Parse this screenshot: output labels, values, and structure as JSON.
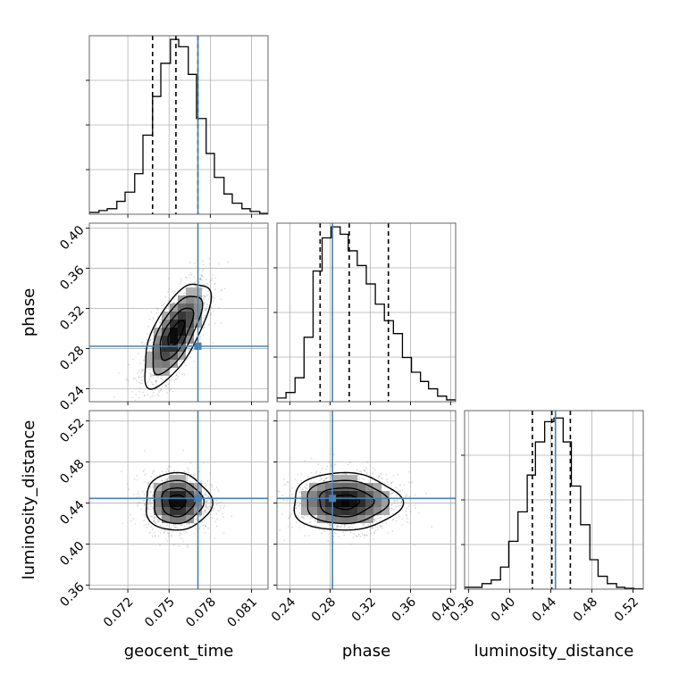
{
  "chart_data": {
    "type": "corner",
    "parameters": [
      "geocent_time",
      "phase",
      "luminosity_distance"
    ],
    "axis_labels": {
      "geocent_time": "geocent_time",
      "phase": "phase",
      "luminosity_distance": "luminosity_distance"
    },
    "ranges": {
      "geocent_time": [
        0.0692,
        0.0822
      ],
      "phase": [
        0.227,
        0.405
      ],
      "luminosity_distance": [
        0.356,
        0.53
      ]
    },
    "ticks": {
      "geocent_time": [
        "0.072",
        "0.075",
        "0.078",
        "0.081"
      ],
      "phase": [
        "0.24",
        "0.28",
        "0.32",
        "0.36",
        "0.40"
      ],
      "luminosity_distance": [
        "0.36",
        "0.40",
        "0.44",
        "0.48",
        "0.52"
      ]
    },
    "truths": {
      "geocent_time": 0.0771,
      "phase": 0.2823,
      "luminosity_distance": 0.4445
    },
    "quantiles": {
      "geocent_time": [
        0.0738,
        0.0755,
        0.0771
      ],
      "phase": [
        0.27,
        0.299,
        0.338
      ],
      "luminosity_distance": [
        0.422,
        0.441,
        0.459
      ]
    },
    "histograms": {
      "geocent_time": {
        "edges": [
          0.0692,
          0.0699,
          0.0705,
          0.0712,
          0.0718,
          0.0725,
          0.0731,
          0.0738,
          0.0744,
          0.0751,
          0.0757,
          0.0764,
          0.077,
          0.0777,
          0.0783,
          0.079,
          0.0796,
          0.0803,
          0.0809,
          0.0816,
          0.0822
        ],
        "counts": [
          0.01,
          0.02,
          0.03,
          0.07,
          0.12,
          0.22,
          0.43,
          0.64,
          0.82,
          0.95,
          0.91,
          0.76,
          0.52,
          0.33,
          0.2,
          0.11,
          0.06,
          0.03,
          0.015,
          0.005
        ]
      },
      "phase": {
        "edges": [
          0.227,
          0.236,
          0.245,
          0.254,
          0.263,
          0.272,
          0.281,
          0.29,
          0.298,
          0.307,
          0.316,
          0.325,
          0.334,
          0.343,
          0.352,
          0.361,
          0.37,
          0.378,
          0.387,
          0.396,
          0.405
        ],
        "counts": [
          0.02,
          0.05,
          0.13,
          0.35,
          0.71,
          0.89,
          0.95,
          0.91,
          0.82,
          0.74,
          0.64,
          0.53,
          0.44,
          0.37,
          0.24,
          0.16,
          0.11,
          0.07,
          0.03,
          0.01
        ]
      },
      "luminosity_distance": {
        "edges": [
          0.356,
          0.365,
          0.373,
          0.382,
          0.391,
          0.399,
          0.408,
          0.417,
          0.425,
          0.434,
          0.443,
          0.452,
          0.46,
          0.469,
          0.478,
          0.486,
          0.495,
          0.504,
          0.512,
          0.521,
          0.53
        ],
        "counts": [
          0.01,
          0.01,
          0.03,
          0.05,
          0.12,
          0.26,
          0.42,
          0.62,
          0.8,
          0.91,
          0.93,
          0.8,
          0.56,
          0.35,
          0.16,
          0.07,
          0.03,
          0.01,
          0.005,
          0.002
        ]
      }
    },
    "joint_2d": [
      {
        "x": "geocent_time",
        "y": "phase",
        "mean": [
          0.0755,
          0.295
        ],
        "sigma": [
          0.0012,
          0.026
        ],
        "correlation": 0.68
      },
      {
        "x": "geocent_time",
        "y": "luminosity_distance",
        "mean": [
          0.0756,
          0.441
        ],
        "sigma": [
          0.0012,
          0.014
        ],
        "correlation": 0.0
      },
      {
        "x": "phase",
        "y": "luminosity_distance",
        "mean": [
          0.295,
          0.441
        ],
        "sigma": [
          0.027,
          0.014
        ],
        "correlation": 0.0
      }
    ],
    "colors": {
      "truth": "#4682b4",
      "histogram": "#000000",
      "quantile": "#000000",
      "scatter": "#888888"
    },
    "grid": true
  }
}
